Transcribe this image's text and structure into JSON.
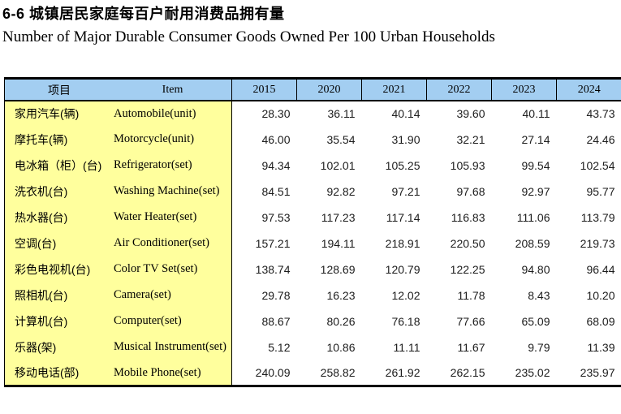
{
  "page": {
    "title_zh": "6-6 城镇居民家庭每百户耐用消费品拥有量",
    "title_en": "Number of Major Durable Consumer Goods Owned Per 100 Urban Households"
  },
  "table": {
    "colors": {
      "header_bg": "#a3cef1",
      "item_bg": "#ffff9d",
      "border": "#000000"
    },
    "header": {
      "item_zh": "项目",
      "item_en": "Item",
      "years": [
        "2015",
        "2020",
        "2021",
        "2022",
        "2023",
        "2024"
      ]
    },
    "rows": [
      {
        "name_zh": "家用汽车(辆)",
        "name_en": "Automobile(unit)",
        "values": [
          "28.30",
          "36.11",
          "40.14",
          "39.60",
          "40.11",
          "43.73"
        ]
      },
      {
        "name_zh": "摩托车(辆)",
        "name_en": "Motorcycle(unit)",
        "values": [
          "46.00",
          "35.54",
          "31.90",
          "32.21",
          "27.14",
          "24.46"
        ]
      },
      {
        "name_zh": "电冰箱（柜）(台)",
        "name_en": "Refrigerator(set)",
        "values": [
          "94.34",
          "102.01",
          "105.25",
          "105.93",
          "99.54",
          "102.54"
        ]
      },
      {
        "name_zh": "洗衣机(台)",
        "name_en": "Washing Machine(set)",
        "values": [
          "84.51",
          "92.82",
          "97.21",
          "97.68",
          "92.97",
          "95.77"
        ]
      },
      {
        "name_zh": "热水器(台)",
        "name_en": "Water Heater(set)",
        "values": [
          "97.53",
          "117.23",
          "117.14",
          "116.83",
          "111.06",
          "113.79"
        ]
      },
      {
        "name_zh": "空调(台)",
        "name_en": "Air Conditioner(set)",
        "values": [
          "157.21",
          "194.11",
          "218.91",
          "220.50",
          "208.59",
          "219.73"
        ]
      },
      {
        "name_zh": "彩色电视机(台)",
        "name_en": "Color TV Set(set)",
        "values": [
          "138.74",
          "128.69",
          "120.79",
          "122.25",
          "94.80",
          "96.44"
        ]
      },
      {
        "name_zh": "照相机(台)",
        "name_en": "Camera(set)",
        "values": [
          "29.78",
          "16.23",
          "12.02",
          "11.78",
          "8.43",
          "10.20"
        ]
      },
      {
        "name_zh": "计算机(台)",
        "name_en": "Computer(set)",
        "values": [
          "88.67",
          "80.26",
          "76.18",
          "77.66",
          "65.09",
          "68.09"
        ]
      },
      {
        "name_zh": "乐器(架)",
        "name_en": "Musical Instrument(set)",
        "values": [
          "5.12",
          "10.86",
          "11.11",
          "11.67",
          "9.79",
          "11.39"
        ]
      },
      {
        "name_zh": "移动电话(部)",
        "name_en": "Mobile Phone(set)",
        "values": [
          "240.09",
          "258.82",
          "261.92",
          "262.15",
          "235.02",
          "235.97"
        ]
      }
    ]
  }
}
